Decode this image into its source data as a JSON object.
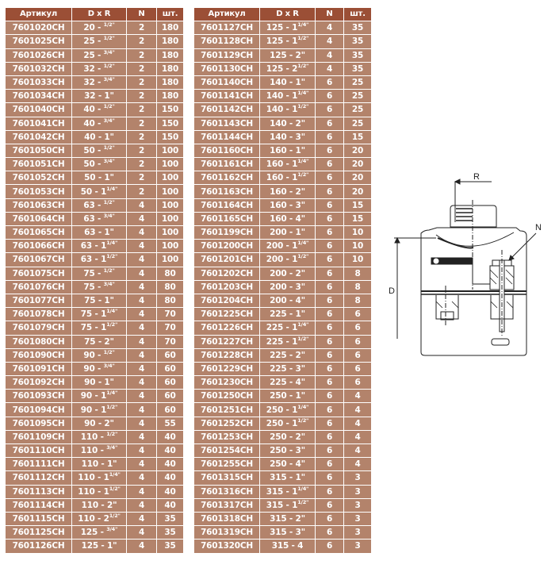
{
  "headers": [
    "Артикул",
    "D x R",
    "N",
    "шт."
  ],
  "left_rows": [
    [
      "7601020CH",
      "20 - ",
      "1/2\"",
      "2",
      "180"
    ],
    [
      "7601025CH",
      "25 - ",
      "1/2\"",
      "2",
      "180"
    ],
    [
      "7601026CH",
      "25 - ",
      "3/4\"",
      "2",
      "180"
    ],
    [
      "7601032CH",
      "32 - ",
      "1/2\"",
      "2",
      "180"
    ],
    [
      "7601033CH",
      "32 - ",
      "3/4\"",
      "2",
      "180"
    ],
    [
      "7601034CH",
      "32 - 1\"",
      "",
      "2",
      "180"
    ],
    [
      "7601040CH",
      "40 - ",
      "1/2\"",
      "2",
      "150"
    ],
    [
      "7601041CH",
      "40 - ",
      "3/4\"",
      "2",
      "150"
    ],
    [
      "7601042CH",
      "40 - 1\"",
      "",
      "2",
      "150"
    ],
    [
      "7601050CH",
      "50 - ",
      "1/2\"",
      "2",
      "100"
    ],
    [
      "7601051CH",
      "50 - ",
      "3/4\"",
      "2",
      "100"
    ],
    [
      "7601052CH",
      "50 - 1\"",
      "",
      "2",
      "100"
    ],
    [
      "7601053CH",
      "50 - 1",
      "1/4\"",
      "2",
      "100"
    ],
    [
      "7601063CH",
      "63 - ",
      "1/2\"",
      "4",
      "100"
    ],
    [
      "7601064CH",
      "63 - ",
      "3/4\"",
      "4",
      "100"
    ],
    [
      "7601065CH",
      "63 - 1\"",
      "",
      "4",
      "100"
    ],
    [
      "7601066CH",
      "63 - 1",
      "1/4\"",
      "4",
      "100"
    ],
    [
      "7601067CH",
      "63 - 1",
      "1/2\"",
      "4",
      "100"
    ],
    [
      "7601075CH",
      "75 - ",
      "1/2\"",
      "4",
      "80"
    ],
    [
      "7601076CH",
      "75 - ",
      "3/4\"",
      "4",
      "80"
    ],
    [
      "7601077CH",
      "75 - 1\"",
      "",
      "4",
      "80"
    ],
    [
      "7601078CH",
      "75 - 1",
      "1/4\"",
      "4",
      "70"
    ],
    [
      "7601079CH",
      "75 - 1",
      "1/2\"",
      "4",
      "70"
    ],
    [
      "7601080CH",
      "75 - 2\"",
      "",
      "4",
      "70"
    ],
    [
      "7601090CH",
      "90 - ",
      "1/2\"",
      "4",
      "60"
    ],
    [
      "7601091CH",
      "90 - ",
      "3/4\"",
      "4",
      "60"
    ],
    [
      "7601092CH",
      "90 - 1\"",
      "",
      "4",
      "60"
    ],
    [
      "7601093CH",
      "90 - 1",
      "1/4\"",
      "4",
      "60"
    ],
    [
      "7601094CH",
      "90 - 1",
      "1/2\"",
      "4",
      "60"
    ],
    [
      "7601095CH",
      "90 - 2\"",
      "",
      "4",
      "55"
    ],
    [
      "7601109CH",
      "110 - ",
      "1/2\"",
      "4",
      "40"
    ],
    [
      "7601110CH",
      "110 - ",
      "3/4\"",
      "4",
      "40"
    ],
    [
      "7601111CH",
      "110 - 1\"",
      "",
      "4",
      "40"
    ],
    [
      "7601112CH",
      "110 - 1",
      "1/4\"",
      "4",
      "40"
    ],
    [
      "7601113CH",
      "110 - 1",
      "1/2\"",
      "4",
      "40"
    ],
    [
      "7601114CH",
      "110 - 2\"",
      "",
      "4",
      "40"
    ],
    [
      "7601115CH",
      "110 - 2",
      "1/2\"",
      "4",
      "35"
    ],
    [
      "7601125CH",
      "125 - ",
      "3/4\"",
      "4",
      "35"
    ],
    [
      "7601126CH",
      "125 - 1\"",
      "",
      "4",
      "35"
    ]
  ],
  "right_rows": [
    [
      "7601127CH",
      "125 - 1",
      "1/4\"",
      "4",
      "35"
    ],
    [
      "7601128CH",
      "125 - 1",
      "1/2\"",
      "4",
      "35"
    ],
    [
      "7601129CH",
      "125 - 2\"",
      "",
      "4",
      "35"
    ],
    [
      "7601130CH",
      "125 - 2",
      "1/2\"",
      "4",
      "35"
    ],
    [
      "7601140CH",
      "140 - 1\"",
      "",
      "6",
      "25"
    ],
    [
      "7601141CH",
      "140 - 1",
      "1/4\"",
      "6",
      "25"
    ],
    [
      "7601142CH",
      "140 - 1",
      "1/2\"",
      "6",
      "25"
    ],
    [
      "7601143CH",
      "140 - 2\"",
      "",
      "6",
      "25"
    ],
    [
      "7601144CH",
      "140 - 3\"",
      "",
      "6",
      "15"
    ],
    [
      "7601160CH",
      "160 - 1\"",
      "",
      "6",
      "20"
    ],
    [
      "7601161CH",
      "160 - 1",
      "1/4\"",
      "6",
      "20"
    ],
    [
      "7601162CH",
      "160 - 1",
      "1/2\"",
      "6",
      "20"
    ],
    [
      "7601163CH",
      "160 - 2\"",
      "",
      "6",
      "20"
    ],
    [
      "7601164CH",
      "160 - 3\"",
      "",
      "6",
      "15"
    ],
    [
      "7601165CH",
      "160 - 4\"",
      "",
      "6",
      "15"
    ],
    [
      "7601199CH",
      "200 - 1\"",
      "",
      "6",
      "10"
    ],
    [
      "7601200CH",
      "200 - 1",
      "1/4\"",
      "6",
      "10"
    ],
    [
      "7601201CH",
      "200 - 1",
      "1/2\"",
      "6",
      "10"
    ],
    [
      "7601202CH",
      "200 - 2\"",
      "",
      "6",
      "8"
    ],
    [
      "7601203CH",
      "200 - 3\"",
      "",
      "6",
      "8"
    ],
    [
      "7601204CH",
      "200 - 4\"",
      "",
      "6",
      "8"
    ],
    [
      "7601225CH",
      "225 - 1\"",
      "",
      "6",
      "6"
    ],
    [
      "7601226CH",
      "225 - 1",
      "1/4\"",
      "6",
      "6"
    ],
    [
      "7601227CH",
      "225 - 1",
      "1/2\"",
      "6",
      "6"
    ],
    [
      "7601228CH",
      "225 - 2\"",
      "",
      "6",
      "6"
    ],
    [
      "7601229CH",
      "225 - 3\"",
      "",
      "6",
      "6"
    ],
    [
      "7601230CH",
      "225 - 4\"",
      "",
      "6",
      "6"
    ],
    [
      "7601250CH",
      "250 - 1\"",
      "",
      "6",
      "4"
    ],
    [
      "7601251CH",
      "250 - 1",
      "1/4\"",
      "6",
      "4"
    ],
    [
      "7601252CH",
      "250 - 1",
      "1/2\"",
      "6",
      "4"
    ],
    [
      "7601253CH",
      "250 - 2\"",
      "",
      "6",
      "4"
    ],
    [
      "7601254CH",
      "250 - 3\"",
      "",
      "6",
      "4"
    ],
    [
      "7601255CH",
      "250 - 4\"",
      "",
      "6",
      "4"
    ],
    [
      "7601315CH",
      "315 - 1\"",
      "",
      "6",
      "3"
    ],
    [
      "7601316CH",
      "315 - 1",
      "1/4\"",
      "6",
      "3"
    ],
    [
      "7601317CH",
      "315 - 1",
      "1/2\"",
      "6",
      "3"
    ],
    [
      "7601318CH",
      "315 - 2\"",
      "",
      "6",
      "3"
    ],
    [
      "7601319CH",
      "315 - 3\"",
      "",
      "6",
      "3"
    ],
    [
      "7601320CH",
      "315 - 4",
      "",
      "6",
      "3"
    ]
  ],
  "diagram": {
    "label_r": "R",
    "label_n": "N",
    "label_d": "D"
  },
  "colors": {
    "header": "#9b4f36",
    "row": "#b3836b",
    "text": "#ffffff"
  }
}
